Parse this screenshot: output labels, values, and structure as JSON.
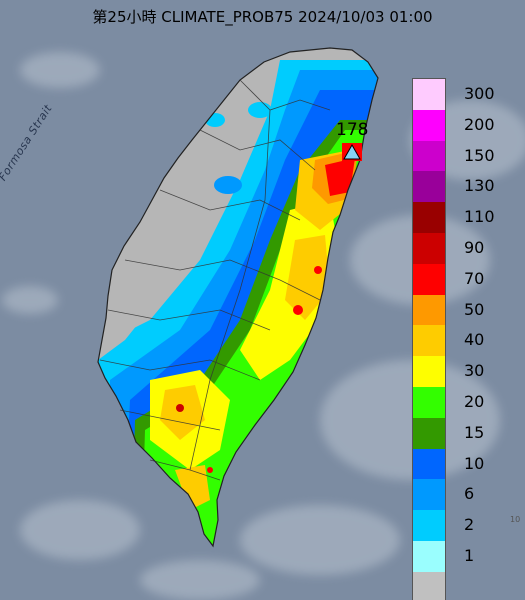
{
  "title": "第25小時  CLIMATE_PROB75 2024/10/03 01:00",
  "sea_label": "Formosa Strait",
  "max_marker": {
    "value": "178",
    "icon": "triangle-marker-icon",
    "color": "#87d3f5"
  },
  "legend": [
    {
      "label": "300",
      "color": "#fecbfe"
    },
    {
      "label": "200",
      "color": "#fe00fe"
    },
    {
      "label": "150",
      "color": "#cc00cc"
    },
    {
      "label": "130",
      "color": "#99009a"
    },
    {
      "label": "110",
      "color": "#990000"
    },
    {
      "label": "90",
      "color": "#cc0000"
    },
    {
      "label": "70",
      "color": "#fe0000"
    },
    {
      "label": "50",
      "color": "#fe9900"
    },
    {
      "label": "40",
      "color": "#fecc00"
    },
    {
      "label": "30",
      "color": "#fefe00"
    },
    {
      "label": "20",
      "color": "#33fe00"
    },
    {
      "label": "15",
      "color": "#339900"
    },
    {
      "label": "10",
      "color": "#0066fe"
    },
    {
      "label": "6",
      "color": "#0099fe"
    },
    {
      "label": "2",
      "color": "#00ccfe"
    },
    {
      "label": "1",
      "color": "#9afefe"
    },
    {
      "label": "",
      "color": "#c0c0c0"
    }
  ],
  "corner_mark": "10"
}
